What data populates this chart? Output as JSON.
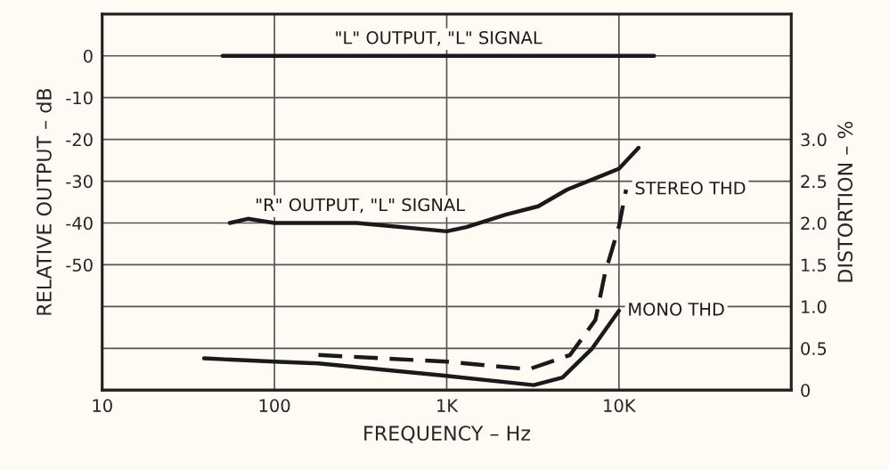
{
  "chart_data": {
    "type": "line",
    "xlabel": "FREQUENCY – Hz",
    "ylabel": "RELATIVE OUTPUT – dB",
    "y2label": "DISTORTION – %",
    "log": "x",
    "grid": true,
    "legend": false,
    "marker": "none",
    "xlim": [
      10,
      100000
    ],
    "xticks": [
      10,
      100,
      {
        "value": 1000,
        "label": "1K"
      },
      {
        "value": 10000,
        "label": "10K"
      }
    ],
    "ylim": [
      -80,
      10
    ],
    "yticks": [
      {
        "value": -80,
        "label": null
      },
      {
        "value": -70,
        "label": null
      },
      {
        "value": -60,
        "label": null
      },
      -50,
      -40,
      -30,
      -20,
      -10,
      0,
      {
        "value": 10,
        "label": null
      }
    ],
    "y2lim": [
      0,
      4.5
    ],
    "y2ticks": [
      0,
      0.5,
      {
        "value": 1,
        "label": "1.0"
      },
      1.5,
      {
        "value": 2,
        "label": "2.0"
      },
      2.5,
      {
        "value": 3,
        "label": "3.0"
      },
      {
        "value": 3.5,
        "label": null
      },
      {
        "value": 4,
        "label": null
      },
      {
        "value": 4.5,
        "label": null
      }
    ],
    "series": [
      {
        "name": "\"L\" OUTPUT, \"L\" SIGNAL",
        "color": "#1a1a1a",
        "line_style": "solid",
        "x": [
          50,
          16000
        ],
        "values": [
          0,
          0
        ]
      },
      {
        "name": "\"R\" OUTPUT, \"L\" SIGNAL",
        "color": "#1a1a1a",
        "line_style": "solid",
        "x": [
          55,
          70,
          100,
          300,
          1000,
          1300,
          2200,
          3400,
          5000,
          7600,
          10000,
          13000
        ],
        "values": [
          -40,
          -39,
          -40,
          -40,
          -42,
          -41,
          -38,
          -36,
          -32,
          -29,
          -27,
          -22
        ]
      },
      {
        "name": "STEREO THD",
        "color": "#1a1a1a",
        "axis": "y2",
        "line_style": "dashed",
        "x": [
          180,
          1000,
          3000,
          5200,
          7300,
          8300,
          10000,
          11000
        ],
        "values": [
          0.42,
          0.34,
          0.25,
          0.42,
          0.84,
          1.4,
          1.96,
          2.4
        ]
      },
      {
        "name": "MONO THD",
        "color": "#1a1a1a",
        "axis": "y2",
        "line_style": "solid",
        "x": [
          39,
          100,
          180,
          1000,
          3200,
          4700,
          7000,
          10000
        ],
        "values": [
          0.38,
          0.34,
          0.32,
          0.17,
          0.06,
          0.15,
          0.5,
          0.95
        ]
      }
    ]
  }
}
